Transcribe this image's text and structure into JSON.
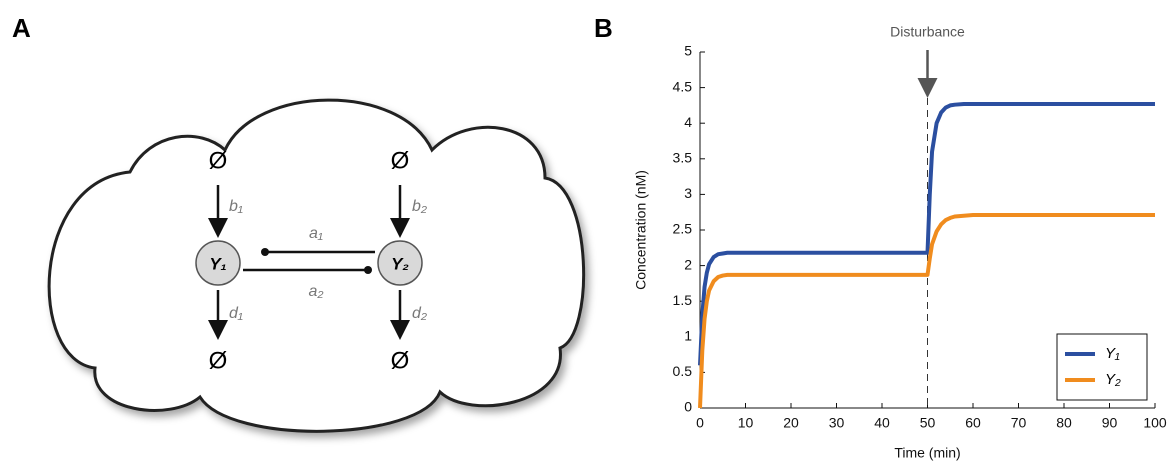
{
  "panels": {
    "a": "A",
    "b": "B"
  },
  "diagram": {
    "sources": [
      "Ø",
      "Ø"
    ],
    "sinks": [
      "Ø",
      "Ø"
    ],
    "nodes": [
      "Y₁",
      "Y₂"
    ],
    "production": [
      "b₁",
      "b₂"
    ],
    "degradation": [
      "d₁",
      "d₂"
    ],
    "interactions": [
      "a₁",
      "a₂"
    ]
  },
  "chart_data": {
    "type": "line",
    "xlabel": "Time (min)",
    "ylabel": "Concentration (nM)",
    "x": [
      0,
      0.5,
      1,
      1.5,
      2,
      3,
      4,
      5,
      6,
      8,
      10,
      20,
      30,
      40,
      50,
      50.5,
      51,
      52,
      53,
      54,
      55,
      56,
      58,
      60,
      70,
      80,
      90,
      100
    ],
    "series": [
      {
        "name": "Y₁",
        "color": "#2b4fa0",
        "values": [
          0.6,
          1.3,
          1.7,
          1.9,
          2.02,
          2.12,
          2.16,
          2.17,
          2.18,
          2.18,
          2.18,
          2.18,
          2.18,
          2.18,
          2.18,
          3.0,
          3.6,
          4.0,
          4.15,
          4.22,
          4.25,
          4.26,
          4.27,
          4.27,
          4.27,
          4.27,
          4.27,
          4.27
        ]
      },
      {
        "name": "Y₂",
        "color": "#f08c1e",
        "values": [
          0,
          0.8,
          1.25,
          1.5,
          1.65,
          1.78,
          1.84,
          1.86,
          1.87,
          1.87,
          1.87,
          1.87,
          1.87,
          1.87,
          1.87,
          2.1,
          2.3,
          2.48,
          2.58,
          2.64,
          2.67,
          2.69,
          2.7,
          2.71,
          2.71,
          2.71,
          2.71,
          2.71
        ]
      }
    ],
    "xlim": [
      0,
      100
    ],
    "xticks": [
      0,
      10,
      20,
      30,
      40,
      50,
      60,
      70,
      80,
      90,
      100
    ],
    "ylim": [
      0,
      5
    ],
    "yticks": [
      0,
      0.5,
      1,
      1.5,
      2,
      2.5,
      3,
      3.5,
      4,
      4.5,
      5
    ],
    "annotation": {
      "label": "Disturbance",
      "x": 50
    },
    "legend": "lower right"
  }
}
